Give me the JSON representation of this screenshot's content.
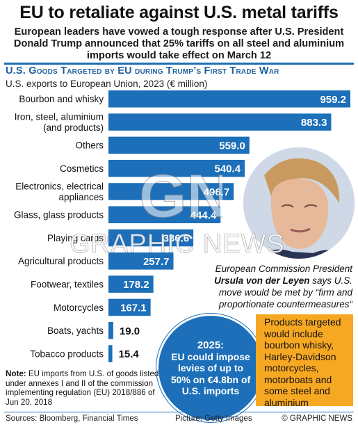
{
  "header": {
    "title": "EU to retaliate against U.S. metal tariffs",
    "subtitle": "European leaders have vowed a tough response after U.S. President Donald Trump announced that 25% tariffs on all steel and aluminium imports would take effect on March 12"
  },
  "chart_data": {
    "type": "bar",
    "orientation": "horizontal",
    "title": "U.S. Goods Targeted by EU during Trump’s First Trade War",
    "subtitle": "U.S. exports to European Union, 2023 (€ million)",
    "unit": "€ million",
    "categories": [
      "Bourbon and whisky",
      "Iron, steel, aluminium (and products)",
      "Others",
      "Cosmetics",
      "Electronics, electrical appliances",
      "Glass, glass products",
      "Playing cards",
      "Agricultural products",
      "Footwear, textiles",
      "Motorcycles",
      "Boats, yachts",
      "Tobacco products"
    ],
    "category_lines": [
      [
        "Bourbon and whisky"
      ],
      [
        "Iron, steel, aluminium",
        "(and products)"
      ],
      [
        "Others"
      ],
      [
        "Cosmetics"
      ],
      [
        "Electronics, electrical",
        "appliances"
      ],
      [
        "Glass, glass products"
      ],
      [
        "Playing cards"
      ],
      [
        "Agricultural products"
      ],
      [
        "Footwear, textiles"
      ],
      [
        "Motorcycles"
      ],
      [
        "Boats, yachts"
      ],
      [
        "Tobacco products"
      ]
    ],
    "values": [
      959.2,
      883.3,
      559.0,
      540.4,
      496.7,
      444.4,
      336.6,
      257.7,
      178.2,
      167.1,
      19.0,
      15.4
    ],
    "value_labels": [
      "959.2",
      "883.3",
      "559.0",
      "540.4",
      "496.7",
      "444.4",
      "336.6",
      "257.7",
      "178.2",
      "167.1",
      "19.0",
      "15.4"
    ],
    "xlim": [
      0,
      959.2
    ],
    "bar_color": "#1c6fb8",
    "grid": false
  },
  "portrait_caption": {
    "line1": "European Commission President",
    "name": "Ursula von der Leyen",
    "rest": "says U.S. move would be met by “firm and proportionate countermeasures“"
  },
  "blue_callout": {
    "head": "2025:",
    "body": "EU could impose levies of up to 50% on €4.8bn of U.S. imports"
  },
  "orange_callout": {
    "text": "Products targeted would include bourbon whisky, Harley-Davidson motorcycles, motorboats and some steel and aluminium"
  },
  "note": {
    "label": "Note:",
    "text": "EU imports from U.S. of goods listed under annexes I and II of the commission implementing regulation (EU) 2018/886 of Jun 20, 2018"
  },
  "footer": {
    "sources": "Sources: Bloomberg, Financial Times",
    "picture": "Picture: Getty Images",
    "credit": "© GRAPHIC NEWS"
  },
  "watermark": {
    "logo": "GN",
    "text": "GRAPHIC NEWS"
  },
  "colors": {
    "accent_blue": "#1c6fb8",
    "orange": "#f7a823",
    "chart_title_blue": "#1e5f9e"
  }
}
